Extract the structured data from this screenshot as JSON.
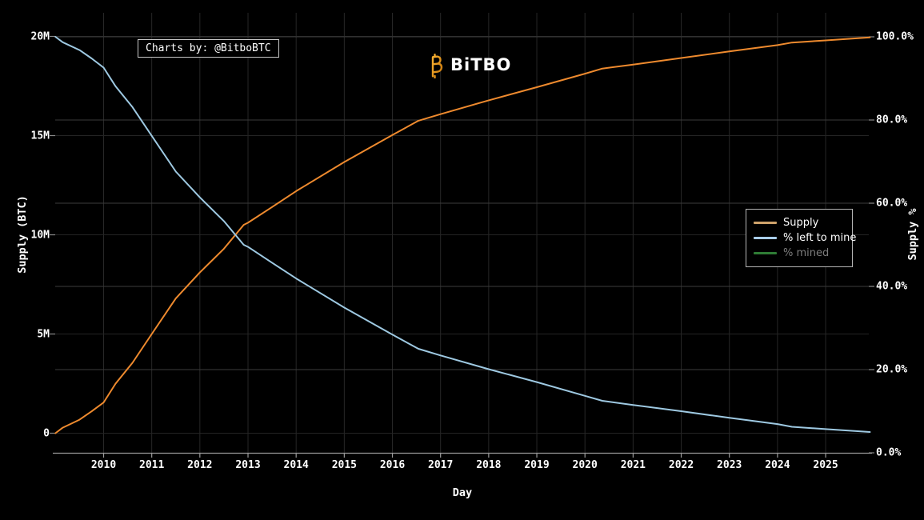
{
  "branding": {
    "annotation": "Charts by: @BitboBTC",
    "logo": {
      "text": "BiTBO",
      "icon": "bitcoin-b-icon",
      "accent_color": "#f7931a"
    }
  },
  "legend": {
    "items": [
      {
        "label": "Supply",
        "color": "#cfa36b",
        "muted": false
      },
      {
        "label": "% left to mine",
        "color": "#a9cde9",
        "muted": false
      },
      {
        "label": "% mined",
        "color": "#2f7d35",
        "muted": true
      }
    ]
  },
  "chart_data": {
    "type": "line",
    "xlabel": "Day",
    "ylabel_left": "Supply (BTC)",
    "ylabel_right": "Supply %",
    "x_ticks": [
      "2010",
      "2011",
      "2012",
      "2013",
      "2014",
      "2015",
      "2016",
      "2017",
      "2018",
      "2019",
      "2020",
      "2021",
      "2022",
      "2023",
      "2024",
      "2025"
    ],
    "xlim": [
      2009.0,
      2025.95
    ],
    "grid": true,
    "legend_position": "right",
    "y_left": {
      "labels": [
        "20M",
        "15M",
        "10M",
        "5M",
        "0"
      ],
      "values": [
        20,
        15,
        10,
        5,
        0
      ],
      "unit": "million BTC",
      "ylim": [
        0,
        20
      ]
    },
    "y_right": {
      "labels": [
        "100.0%",
        "80.0%",
        "60.0%",
        "40.0%",
        "20.0%",
        "0.0%"
      ],
      "values": [
        100,
        80,
        60,
        40,
        20,
        0
      ],
      "unit": "percent of 21M cap",
      "ylim": [
        0,
        100
      ]
    },
    "series": [
      {
        "name": "Supply",
        "axis": "left",
        "color": "#ee8a2e",
        "hidden": false,
        "points": [
          [
            2009.0,
            0
          ],
          [
            2009.15,
            0.28
          ],
          [
            2009.5,
            0.68
          ],
          [
            2009.75,
            1.1
          ],
          [
            2010.0,
            1.55
          ],
          [
            2010.25,
            2.5
          ],
          [
            2010.6,
            3.55
          ],
          [
            2011.0,
            5.0
          ],
          [
            2011.5,
            6.8
          ],
          [
            2012.0,
            8.1
          ],
          [
            2012.5,
            9.3
          ],
          [
            2012.91,
            10.5
          ],
          [
            2013.0,
            10.61
          ],
          [
            2013.5,
            11.4
          ],
          [
            2014.0,
            12.2
          ],
          [
            2015.0,
            13.67
          ],
          [
            2016.0,
            15.03
          ],
          [
            2016.54,
            15.75
          ],
          [
            2017.0,
            16.08
          ],
          [
            2018.0,
            16.78
          ],
          [
            2019.0,
            17.44
          ],
          [
            2020.0,
            18.12
          ],
          [
            2020.36,
            18.38
          ],
          [
            2021.0,
            18.58
          ],
          [
            2022.0,
            18.91
          ],
          [
            2023.0,
            19.24
          ],
          [
            2024.0,
            19.56
          ],
          [
            2024.3,
            19.69
          ],
          [
            2025.0,
            19.8
          ],
          [
            2025.92,
            19.95
          ]
        ]
      },
      {
        "name": "% left to mine",
        "axis": "right",
        "color": "#9ec9e2",
        "hidden": false,
        "points": [
          [
            2009.0,
            100
          ],
          [
            2009.15,
            98.7
          ],
          [
            2009.5,
            96.8
          ],
          [
            2009.75,
            94.8
          ],
          [
            2010.0,
            92.6
          ],
          [
            2010.25,
            88.1
          ],
          [
            2010.6,
            83.1
          ],
          [
            2011.0,
            76.2
          ],
          [
            2011.5,
            67.6
          ],
          [
            2012.0,
            61.4
          ],
          [
            2012.5,
            55.7
          ],
          [
            2012.91,
            50.0
          ],
          [
            2013.0,
            49.5
          ],
          [
            2013.5,
            45.7
          ],
          [
            2014.0,
            41.9
          ],
          [
            2015.0,
            34.9
          ],
          [
            2016.0,
            28.4
          ],
          [
            2016.54,
            25.0
          ],
          [
            2017.0,
            23.4
          ],
          [
            2018.0,
            20.1
          ],
          [
            2019.0,
            17.0
          ],
          [
            2020.0,
            13.7
          ],
          [
            2020.36,
            12.5
          ],
          [
            2021.0,
            11.5
          ],
          [
            2022.0,
            10.0
          ],
          [
            2023.0,
            8.4
          ],
          [
            2024.0,
            6.9
          ],
          [
            2024.3,
            6.25
          ],
          [
            2025.0,
            5.7
          ],
          [
            2025.92,
            5.0
          ]
        ]
      },
      {
        "name": "% mined",
        "axis": "right",
        "color": "#2f7d35",
        "hidden": true,
        "points": []
      }
    ]
  }
}
